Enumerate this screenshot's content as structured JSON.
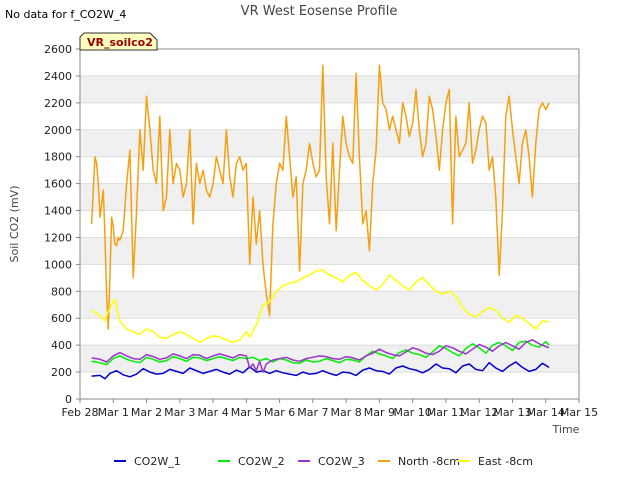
{
  "chart_data": {
    "type": "line",
    "title": "VR West Eosense Profile",
    "corner_note": "No data for f_CO2W_4",
    "site_badge": "VR_soilco2",
    "xlabel": "Time",
    "ylabel": "Soil CO2 (mV)",
    "xlim": [
      0,
      15
    ],
    "ylim": [
      0,
      2600
    ],
    "x_ticks": [
      {
        "v": 0,
        "label": "Feb 28"
      },
      {
        "v": 1,
        "label": "Mar 1"
      },
      {
        "v": 2,
        "label": "Mar 2"
      },
      {
        "v": 3,
        "label": "Mar 3"
      },
      {
        "v": 4,
        "label": "Mar 4"
      },
      {
        "v": 5,
        "label": "Mar 5"
      },
      {
        "v": 6,
        "label": "Mar 6"
      },
      {
        "v": 7,
        "label": "Mar 7"
      },
      {
        "v": 8,
        "label": "Mar 8"
      },
      {
        "v": 9,
        "label": "Mar 9"
      },
      {
        "v": 10,
        "label": "Mar 10"
      },
      {
        "v": 11,
        "label": "Mar 11"
      },
      {
        "v": 12,
        "label": "Mar 12"
      },
      {
        "v": 13,
        "label": "Mar 13"
      },
      {
        "v": 14,
        "label": "Mar 14"
      },
      {
        "v": 15,
        "label": "Mar 15"
      }
    ],
    "y_ticks": [
      0,
      200,
      400,
      600,
      800,
      1000,
      1200,
      1400,
      1600,
      1800,
      2000,
      2200,
      2400,
      2600
    ],
    "grid": true,
    "legend_position": "bottom",
    "series": [
      {
        "name": "CO2W_1",
        "color": "#0000cc",
        "x": [
          0.35,
          0.6,
          0.75,
          0.9,
          1.1,
          1.3,
          1.5,
          1.7,
          1.9,
          2.1,
          2.3,
          2.5,
          2.7,
          2.9,
          3.1,
          3.3,
          3.5,
          3.7,
          3.9,
          4.1,
          4.3,
          4.5,
          4.7,
          4.9,
          5.1,
          5.3,
          5.5,
          5.7,
          5.9,
          6.1,
          6.3,
          6.5,
          6.7,
          6.9,
          7.1,
          7.3,
          7.5,
          7.7,
          7.9,
          8.1,
          8.3,
          8.5,
          8.7,
          8.9,
          9.1,
          9.3,
          9.5,
          9.7,
          9.9,
          10.1,
          10.3,
          10.5,
          10.7,
          10.9,
          11.1,
          11.3,
          11.5,
          11.7,
          11.9,
          12.1,
          12.3,
          12.5,
          12.7,
          12.9,
          13.1,
          13.3,
          13.5,
          13.7,
          13.9,
          14.1
        ],
        "y": [
          170,
          175,
          150,
          190,
          210,
          180,
          165,
          185,
          225,
          200,
          185,
          190,
          220,
          205,
          190,
          230,
          210,
          190,
          205,
          220,
          200,
          185,
          215,
          195,
          240,
          200,
          210,
          190,
          210,
          195,
          185,
          175,
          200,
          185,
          190,
          210,
          190,
          175,
          200,
          195,
          175,
          215,
          230,
          210,
          205,
          185,
          230,
          245,
          225,
          215,
          195,
          220,
          260,
          230,
          225,
          195,
          245,
          260,
          220,
          210,
          270,
          230,
          205,
          245,
          275,
          235,
          205,
          220,
          265,
          235
        ]
      },
      {
        "name": "CO2W_2",
        "color": "#00ee00",
        "x": [
          0.35,
          0.6,
          0.8,
          1.0,
          1.2,
          1.4,
          1.6,
          1.8,
          2.0,
          2.2,
          2.4,
          2.6,
          2.8,
          3.0,
          3.2,
          3.4,
          3.6,
          3.8,
          4.0,
          4.2,
          4.4,
          4.6,
          4.8,
          5.0,
          5.2,
          5.4,
          5.6,
          5.8,
          6.0,
          6.2,
          6.4,
          6.6,
          6.8,
          7.0,
          7.2,
          7.4,
          7.6,
          7.8,
          8.0,
          8.2,
          8.4,
          8.6,
          8.8,
          9.0,
          9.2,
          9.4,
          9.6,
          9.8,
          10.0,
          10.2,
          10.4,
          10.6,
          10.8,
          11.0,
          11.2,
          11.4,
          11.6,
          11.8,
          12.0,
          12.2,
          12.4,
          12.6,
          12.8,
          13.0,
          13.2,
          13.4,
          13.6,
          13.8,
          14.0,
          14.1
        ],
        "y": [
          280,
          270,
          255,
          300,
          320,
          295,
          280,
          270,
          310,
          295,
          275,
          285,
          315,
          300,
          280,
          310,
          305,
          285,
          300,
          315,
          300,
          285,
          310,
          300,
          310,
          285,
          300,
          275,
          300,
          290,
          270,
          265,
          290,
          275,
          280,
          300,
          285,
          270,
          295,
          290,
          275,
          320,
          355,
          335,
          320,
          300,
          345,
          365,
          340,
          330,
          310,
          350,
          395,
          375,
          345,
          320,
          375,
          410,
          380,
          340,
          400,
          420,
          395,
          360,
          420,
          430,
          400,
          385,
          425,
          400
        ]
      },
      {
        "name": "CO2W_3",
        "color": "#9933cc",
        "x": [
          0.35,
          0.6,
          0.8,
          1.0,
          1.2,
          1.4,
          1.6,
          1.8,
          2.0,
          2.2,
          2.4,
          2.6,
          2.8,
          3.0,
          3.2,
          3.4,
          3.6,
          3.8,
          4.0,
          4.2,
          4.4,
          4.6,
          4.8,
          5.0,
          5.1,
          5.2,
          5.3,
          5.4,
          5.5,
          5.6,
          5.8,
          6.0,
          6.2,
          6.4,
          6.6,
          6.8,
          7.0,
          7.2,
          7.4,
          7.6,
          7.8,
          8.0,
          8.2,
          8.4,
          8.6,
          8.8,
          9.0,
          9.2,
          9.4,
          9.6,
          9.8,
          10.0,
          10.2,
          10.4,
          10.6,
          10.8,
          11.0,
          11.2,
          11.4,
          11.6,
          11.8,
          12.0,
          12.2,
          12.4,
          12.6,
          12.8,
          13.0,
          13.2,
          13.4,
          13.6,
          13.8,
          14.0,
          14.1
        ],
        "y": [
          305,
          295,
          275,
          320,
          345,
          320,
          300,
          295,
          330,
          315,
          295,
          305,
          335,
          320,
          300,
          330,
          325,
          300,
          320,
          335,
          320,
          305,
          330,
          320,
          230,
          260,
          210,
          280,
          200,
          260,
          290,
          300,
          310,
          290,
          280,
          300,
          310,
          320,
          315,
          300,
          295,
          315,
          305,
          290,
          320,
          340,
          370,
          345,
          330,
          320,
          350,
          380,
          365,
          340,
          330,
          355,
          395,
          380,
          355,
          335,
          370,
          405,
          385,
          355,
          395,
          420,
          395,
          370,
          420,
          440,
          410,
          390,
          380
        ]
      },
      {
        "name": "North -8cm",
        "color": "#f5a010",
        "x": [
          0.35,
          0.4,
          0.45,
          0.5,
          0.55,
          0.6,
          0.65,
          0.7,
          0.75,
          0.8,
          0.85,
          0.9,
          0.95,
          1.0,
          1.05,
          1.1,
          1.15,
          1.2,
          1.3,
          1.4,
          1.5,
          1.6,
          1.7,
          1.8,
          1.9,
          2.0,
          2.1,
          2.2,
          2.3,
          2.4,
          2.5,
          2.6,
          2.7,
          2.8,
          2.9,
          3.0,
          3.1,
          3.2,
          3.3,
          3.4,
          3.5,
          3.6,
          3.7,
          3.8,
          3.9,
          4.0,
          4.1,
          4.2,
          4.3,
          4.4,
          4.5,
          4.6,
          4.7,
          4.8,
          4.9,
          5.0,
          5.1,
          5.2,
          5.3,
          5.4,
          5.5,
          5.6,
          5.7,
          5.8,
          5.9,
          6.0,
          6.1,
          6.2,
          6.3,
          6.4,
          6.5,
          6.6,
          6.7,
          6.8,
          6.9,
          7.0,
          7.1,
          7.2,
          7.3,
          7.4,
          7.5,
          7.6,
          7.7,
          7.8,
          7.9,
          8.0,
          8.1,
          8.2,
          8.3,
          8.4,
          8.5,
          8.6,
          8.7,
          8.8,
          8.9,
          9.0,
          9.1,
          9.2,
          9.3,
          9.4,
          9.5,
          9.6,
          9.7,
          9.8,
          9.9,
          10.0,
          10.1,
          10.2,
          10.3,
          10.4,
          10.5,
          10.6,
          10.7,
          10.8,
          10.9,
          11.0,
          11.1,
          11.2,
          11.3,
          11.4,
          11.5,
          11.6,
          11.7,
          11.8,
          11.9,
          12.0,
          12.1,
          12.2,
          12.3,
          12.4,
          12.5,
          12.6,
          12.7,
          12.8,
          12.9,
          13.0,
          13.1,
          13.2,
          13.3,
          13.4,
          13.5,
          13.6,
          13.7,
          13.8,
          13.9,
          14.0,
          14.1
        ],
        "y": [
          1300,
          1550,
          1800,
          1750,
          1600,
          1350,
          1450,
          1550,
          1200,
          780,
          520,
          900,
          1350,
          1280,
          1150,
          1140,
          1200,
          1180,
          1250,
          1600,
          1850,
          900,
          1400,
          2000,
          1700,
          2250,
          2000,
          1700,
          1600,
          2100,
          1400,
          1500,
          2000,
          1600,
          1750,
          1700,
          1500,
          1600,
          2000,
          1300,
          1750,
          1600,
          1700,
          1550,
          1500,
          1600,
          1800,
          1700,
          1600,
          2000,
          1650,
          1500,
          1750,
          1800,
          1700,
          1750,
          1000,
          1500,
          1150,
          1400,
          1000,
          780,
          620,
          1300,
          1600,
          1750,
          1700,
          2100,
          1800,
          1500,
          1650,
          950,
          1600,
          1700,
          1900,
          1750,
          1650,
          1700,
          2480,
          1650,
          1300,
          1900,
          1250,
          1700,
          2100,
          1900,
          1800,
          1750,
          2420,
          1800,
          1300,
          1400,
          1100,
          1600,
          1850,
          2480,
          2200,
          2150,
          2000,
          2100,
          2000,
          1900,
          2200,
          2100,
          1950,
          2050,
          2300,
          2000,
          1800,
          1900,
          2250,
          2150,
          1950,
          1700,
          2000,
          2200,
          2300,
          1300,
          2100,
          1800,
          1850,
          1900,
          2200,
          1750,
          1850,
          2000,
          2100,
          2050,
          1700,
          1800,
          1500,
          920,
          1400,
          2100,
          2250,
          2000,
          1800,
          1600,
          1900,
          2000,
          1800,
          1500,
          1900,
          2150,
          2200,
          2150,
          2200
        ]
      },
      {
        "name": "East -8cm",
        "color": "#ffff00",
        "x": [
          0.35,
          0.6,
          0.75,
          0.85,
          0.95,
          1.05,
          1.2,
          1.4,
          1.6,
          1.8,
          2.0,
          2.2,
          2.4,
          2.6,
          2.8,
          3.0,
          3.2,
          3.4,
          3.6,
          3.8,
          4.0,
          4.2,
          4.4,
          4.6,
          4.8,
          5.0,
          5.1,
          5.3,
          5.5,
          5.7,
          5.9,
          6.1,
          6.3,
          6.5,
          6.7,
          6.9,
          7.1,
          7.3,
          7.5,
          7.7,
          7.9,
          8.1,
          8.3,
          8.5,
          8.7,
          8.9,
          9.1,
          9.3,
          9.5,
          9.7,
          9.9,
          10.1,
          10.3,
          10.5,
          10.7,
          10.9,
          11.1,
          11.3,
          11.5,
          11.7,
          11.9,
          12.1,
          12.3,
          12.5,
          12.7,
          12.9,
          13.1,
          13.3,
          13.5,
          13.7,
          13.9,
          14.1
        ],
        "y": [
          660,
          620,
          580,
          650,
          700,
          740,
          580,
          520,
          500,
          480,
          520,
          500,
          460,
          450,
          480,
          500,
          480,
          450,
          420,
          450,
          470,
          460,
          440,
          420,
          440,
          500,
          460,
          550,
          700,
          720,
          800,
          840,
          860,
          870,
          900,
          920,
          950,
          960,
          920,
          900,
          870,
          920,
          940,
          880,
          840,
          810,
          850,
          920,
          880,
          840,
          810,
          870,
          900,
          850,
          800,
          780,
          800,
          760,
          680,
          630,
          610,
          650,
          680,
          660,
          600,
          570,
          620,
          600,
          560,
          520,
          580,
          570
        ]
      }
    ]
  }
}
